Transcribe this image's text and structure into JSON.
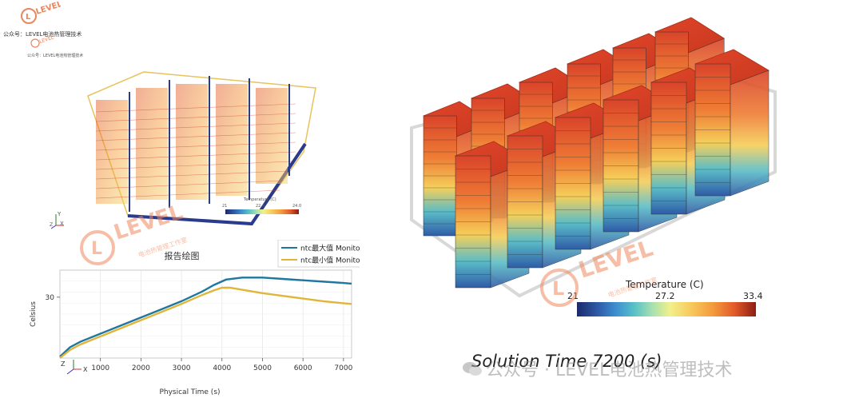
{
  "wechat_header": {
    "line1": "公众号：LEVEL电池热管理技术",
    "line2": "公众号：LEVEL电池热管理技术"
  },
  "watermark": {
    "brand": "LEVEL",
    "sub": "电池热管理工作室",
    "footer": "公众号 · LEVEL电池热管理技术"
  },
  "top_left_render": {
    "colorbar_title": "Temperature (C)",
    "colorbar_min": "21",
    "colorbar_mid": "22.4",
    "colorbar_max": "24.0",
    "axis_y": "Y",
    "axis_x": "X",
    "axis_z": "Z"
  },
  "right_render": {
    "colorbar_title": "Temperature (C)",
    "colorbar_min": "21",
    "colorbar_mid": "27.2",
    "colorbar_max": "33.4",
    "solution_time": "Solution Time 7200 (s)"
  },
  "chart_data": {
    "type": "line",
    "title": "报告绘图",
    "xlabel": "Physical Time (s)",
    "ylabel": "Celsius",
    "xlim": [
      0,
      7200
    ],
    "ylim": [
      21,
      34
    ],
    "xticks": [
      1000,
      2000,
      3000,
      4000,
      5000,
      6000,
      7000
    ],
    "yticks": [
      30
    ],
    "legend_position": "top-right",
    "series": [
      {
        "name": "ntc最大值 Monitor",
        "color": "#1f77a0",
        "x": [
          0,
          250,
          500,
          1000,
          1500,
          2000,
          2500,
          3000,
          3500,
          3800,
          4100,
          4500,
          5000,
          5500,
          6000,
          6500,
          7000,
          7200
        ],
        "y": [
          21.2,
          22.6,
          23.4,
          24.6,
          25.8,
          27.0,
          28.2,
          29.4,
          30.8,
          31.8,
          32.6,
          32.9,
          32.9,
          32.7,
          32.5,
          32.3,
          32.1,
          32.0
        ]
      },
      {
        "name": "ntc最小值 Monitor",
        "color": "#e0b53a",
        "x": [
          0,
          250,
          500,
          1000,
          1500,
          2000,
          2500,
          3000,
          3500,
          3800,
          4000,
          4200,
          4500,
          5000,
          5500,
          6000,
          6500,
          7000,
          7200
        ],
        "y": [
          21.0,
          22.2,
          23.0,
          24.2,
          25.4,
          26.6,
          27.8,
          29.0,
          30.3,
          31.0,
          31.4,
          31.4,
          31.1,
          30.6,
          30.2,
          29.8,
          29.4,
          29.1,
          29.0
        ]
      }
    ]
  },
  "chart_axes_triad": {
    "x": "X",
    "z": "Z"
  }
}
